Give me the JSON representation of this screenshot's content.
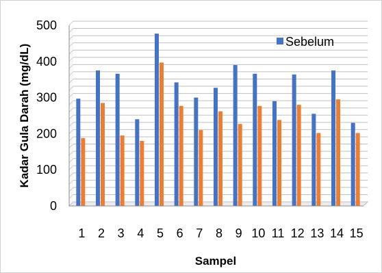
{
  "chart_data": {
    "type": "bar",
    "title": "",
    "xlabel": "Sampel",
    "ylabel": "Kadar Gula Darah (mg/dL)",
    "ylim": [
      0,
      500
    ],
    "yticks": [
      "0",
      "100",
      "200",
      "300",
      "400",
      "500"
    ],
    "categories": [
      "1",
      "2",
      "3",
      "4",
      "5",
      "6",
      "7",
      "8",
      "9",
      "10",
      "11",
      "12",
      "13",
      "14",
      "15"
    ],
    "grid": true,
    "legend_position": "top-right",
    "series": [
      {
        "name": "Sebelum",
        "color": "#4472c4",
        "values": [
          297,
          375,
          366,
          240,
          477,
          342,
          300,
          327,
          390,
          366,
          290,
          364,
          255,
          375,
          230
        ]
      },
      {
        "name": "",
        "color": "#ed7d31",
        "values": [
          188,
          285,
          195,
          180,
          397,
          277,
          210,
          262,
          227,
          277,
          238,
          280,
          202,
          295,
          202
        ]
      }
    ]
  }
}
